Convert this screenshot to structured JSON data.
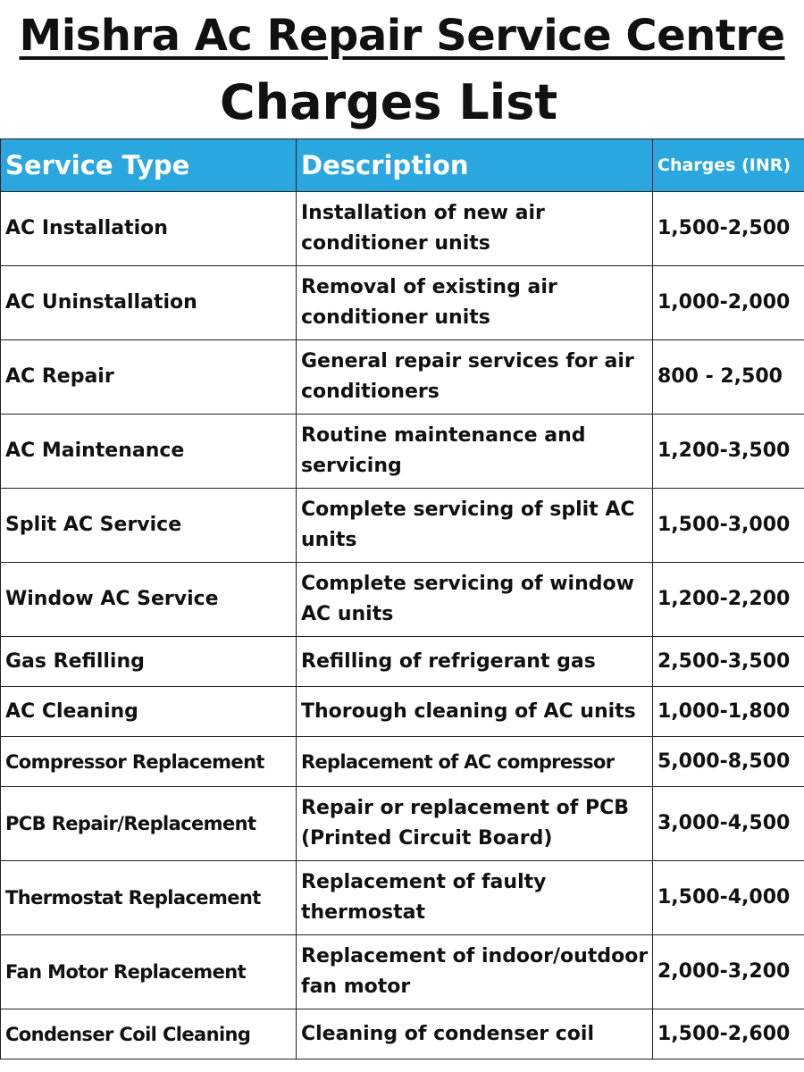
{
  "header": {
    "title": "Mishra Ac Repair Service Centre",
    "subtitle": "Charges List"
  },
  "table": {
    "columns": [
      "Service Type",
      "Description",
      "Charges (INR)"
    ],
    "rows": [
      {
        "service": "AC Installation",
        "description": "Installation of new air conditioner units",
        "charge": "1,500-2,500"
      },
      {
        "service": "AC Uninstallation",
        "description": "Removal of existing air conditioner units",
        "charge": "1,000-2,000"
      },
      {
        "service": "AC Repair",
        "description": "General repair services for air conditioners",
        "charge": "800 - 2,500"
      },
      {
        "service": "AC Maintenance",
        "description": "Routine maintenance and servicing",
        "charge": "1,200-3,500"
      },
      {
        "service": "Split AC Service",
        "description": "Complete servicing of split AC units",
        "charge": "1,500-3,000"
      },
      {
        "service": "Window AC Service",
        "description": "Complete servicing of window AC units",
        "charge": "1,200-2,200"
      },
      {
        "service": "Gas Refilling",
        "description": "Refilling of refrigerant gas",
        "charge": "2,500-3,500"
      },
      {
        "service": "AC Cleaning",
        "description": "Thorough cleaning of AC units",
        "charge": "1,000-1,800"
      },
      {
        "service": "Compressor Replacement",
        "description": "Replacement of AC compressor",
        "charge": "5,000-8,500"
      },
      {
        "service": "PCB Repair/Replacement",
        "description": "Repair or replacement of PCB (Printed Circuit Board)",
        "charge": "3,000-4,500"
      },
      {
        "service": "Thermostat Replacement",
        "description": "Replacement of faulty thermostat",
        "charge": "1,500-4,000"
      },
      {
        "service": "Fan Motor Replacement",
        "description": "Replacement of indoor/outdoor fan motor",
        "charge": "2,000-3,200"
      },
      {
        "service": "Condenser Coil Cleaning",
        "description": "Cleaning of condenser coil",
        "charge": "1,500-2,600"
      }
    ]
  }
}
